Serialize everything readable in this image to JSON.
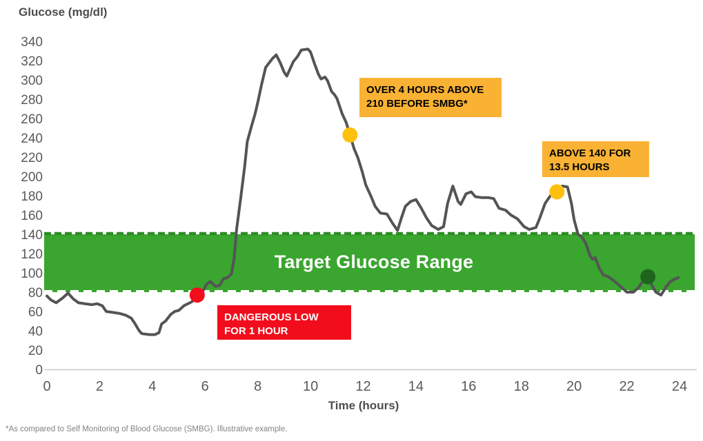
{
  "header": {
    "title": "Glucose (mg/dl)"
  },
  "footnote": "*As compared to Self Monitoring of Blood Glucose (SMBG). Illustrative example.",
  "chart_data": {
    "type": "line",
    "title": "Glucose (mg/dl)",
    "xlabel": "Time (hours)",
    "ylabel": "Glucose (mg/dl)",
    "xlim": [
      0,
      24
    ],
    "ylim": [
      0,
      340
    ],
    "xticks": [
      0,
      2,
      4,
      6,
      8,
      10,
      12,
      14,
      16,
      18,
      20,
      22,
      24
    ],
    "yticks": [
      0,
      20,
      40,
      60,
      80,
      100,
      120,
      140,
      160,
      180,
      200,
      220,
      240,
      260,
      280,
      300,
      320,
      340
    ],
    "grid": false,
    "legend": "none",
    "line_color": "#545456",
    "axis_text_color": "#595959",
    "baseline_color": "#c9c9c9",
    "target_range": {
      "low": 80,
      "high": 140,
      "label": "Target Glucose Range",
      "fill": "#3AA52F",
      "top_dash_color": "#2E8B26",
      "bottom_dash_color": "#FFFFFF",
      "text_color": "#FFFFFF"
    },
    "series": [
      {
        "name": "Glucose",
        "points": [
          [
            0,
            76
          ],
          [
            0.15,
            72
          ],
          [
            0.35,
            69
          ],
          [
            0.6,
            74
          ],
          [
            0.8,
            79
          ],
          [
            1.0,
            73
          ],
          [
            1.2,
            69
          ],
          [
            1.45,
            68
          ],
          [
            1.7,
            67
          ],
          [
            1.9,
            68
          ],
          [
            2.1,
            66
          ],
          [
            2.25,
            60
          ],
          [
            2.5,
            59
          ],
          [
            2.75,
            58
          ],
          [
            3.0,
            56
          ],
          [
            3.2,
            53
          ],
          [
            3.35,
            47
          ],
          [
            3.5,
            40
          ],
          [
            3.6,
            37
          ],
          [
            3.9,
            36
          ],
          [
            4.1,
            36
          ],
          [
            4.25,
            38
          ],
          [
            4.35,
            47
          ],
          [
            4.5,
            50
          ],
          [
            4.7,
            57
          ],
          [
            4.85,
            60
          ],
          [
            5.0,
            61
          ],
          [
            5.2,
            66
          ],
          [
            5.5,
            70
          ],
          [
            5.7,
            77
          ],
          [
            5.9,
            80
          ],
          [
            6.05,
            88
          ],
          [
            6.2,
            91
          ],
          [
            6.4,
            86
          ],
          [
            6.55,
            87
          ],
          [
            6.7,
            94
          ],
          [
            6.85,
            95
          ],
          [
            7.0,
            99
          ],
          [
            7.1,
            115
          ],
          [
            7.2,
            146
          ],
          [
            7.35,
            177
          ],
          [
            7.5,
            210
          ],
          [
            7.6,
            236
          ],
          [
            7.75,
            251
          ],
          [
            7.9,
            265
          ],
          [
            8.0,
            277
          ],
          [
            8.15,
            296
          ],
          [
            8.3,
            313
          ],
          [
            8.55,
            322
          ],
          [
            8.7,
            326
          ],
          [
            8.85,
            318
          ],
          [
            9.0,
            308
          ],
          [
            9.1,
            304
          ],
          [
            9.25,
            313
          ],
          [
            9.35,
            319
          ],
          [
            9.5,
            324
          ],
          [
            9.65,
            331
          ],
          [
            9.9,
            332
          ],
          [
            10.0,
            329
          ],
          [
            10.15,
            317
          ],
          [
            10.3,
            306
          ],
          [
            10.4,
            301
          ],
          [
            10.55,
            303
          ],
          [
            10.65,
            299
          ],
          [
            10.8,
            288
          ],
          [
            10.9,
            285
          ],
          [
            11.0,
            281
          ],
          [
            11.2,
            265
          ],
          [
            11.35,
            256
          ],
          [
            11.5,
            243
          ],
          [
            11.65,
            229
          ],
          [
            11.8,
            219
          ],
          [
            11.95,
            206
          ],
          [
            12.1,
            191
          ],
          [
            12.3,
            179
          ],
          [
            12.45,
            169
          ],
          [
            12.65,
            162
          ],
          [
            12.9,
            161
          ],
          [
            13.1,
            152
          ],
          [
            13.3,
            144
          ],
          [
            13.45,
            157
          ],
          [
            13.6,
            169
          ],
          [
            13.8,
            174
          ],
          [
            14.0,
            176
          ],
          [
            14.2,
            167
          ],
          [
            14.4,
            157
          ],
          [
            14.6,
            149
          ],
          [
            14.85,
            145
          ],
          [
            15.05,
            148
          ],
          [
            15.2,
            172
          ],
          [
            15.4,
            190
          ],
          [
            15.6,
            174
          ],
          [
            15.7,
            171
          ],
          [
            15.9,
            182
          ],
          [
            16.1,
            184
          ],
          [
            16.25,
            179
          ],
          [
            16.5,
            178
          ],
          [
            16.75,
            178
          ],
          [
            16.95,
            177
          ],
          [
            17.15,
            167
          ],
          [
            17.4,
            165
          ],
          [
            17.6,
            160
          ],
          [
            17.85,
            156
          ],
          [
            18.1,
            148
          ],
          [
            18.3,
            145
          ],
          [
            18.55,
            147
          ],
          [
            18.7,
            157
          ],
          [
            18.9,
            172
          ],
          [
            19.1,
            180
          ],
          [
            19.35,
            184
          ],
          [
            19.55,
            190
          ],
          [
            19.75,
            189
          ],
          [
            19.9,
            172
          ],
          [
            20.0,
            155
          ],
          [
            20.15,
            140
          ],
          [
            20.3,
            137
          ],
          [
            20.45,
            130
          ],
          [
            20.6,
            118
          ],
          [
            20.7,
            114
          ],
          [
            20.8,
            116
          ],
          [
            20.95,
            105
          ],
          [
            21.1,
            98
          ],
          [
            21.3,
            96
          ],
          [
            21.55,
            91
          ],
          [
            21.8,
            85
          ],
          [
            22.0,
            80
          ],
          [
            22.25,
            80
          ],
          [
            22.45,
            85
          ],
          [
            22.6,
            91
          ],
          [
            22.8,
            96
          ],
          [
            22.95,
            87
          ],
          [
            23.1,
            80
          ],
          [
            23.3,
            77
          ],
          [
            23.5,
            86
          ],
          [
            23.65,
            91
          ],
          [
            23.85,
            94
          ],
          [
            23.95,
            95
          ]
        ]
      }
    ],
    "markers": [
      {
        "name": "dangerous-low-marker",
        "x": 5.7,
        "y": 77,
        "color": "#F20D1C"
      },
      {
        "name": "smbg-marker",
        "x": 11.5,
        "y": 243,
        "color": "#FDC00F"
      },
      {
        "name": "above-140-marker",
        "x": 19.35,
        "y": 184,
        "color": "#FDC00F"
      },
      {
        "name": "end-of-day-marker",
        "x": 22.8,
        "y": 96,
        "color": "#1E641E"
      }
    ],
    "annotations": [
      {
        "id": "over-4-hours",
        "text": "OVER 4 HOURS ABOVE\n210 BEFORE SMBG*",
        "bg": "#F9B233",
        "color": "#000000"
      },
      {
        "id": "above-140",
        "text": "ABOVE 140 FOR\n13.5 HOURS",
        "bg": "#F9B233",
        "color": "#000000"
      },
      {
        "id": "dangerous-low",
        "text": "DANGEROUS LOW\nFOR 1 HOUR",
        "bg": "#F20D1C",
        "color": "#FFFFFF"
      }
    ]
  }
}
